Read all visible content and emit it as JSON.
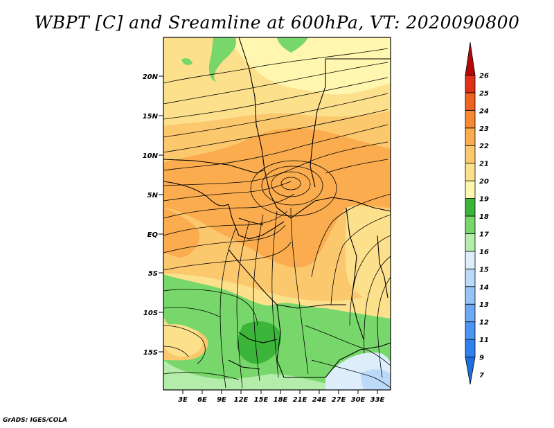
{
  "title": "WBPT [C] and Sreamline at 600hPa, VT: 2020090800",
  "credit": "GrADS: IGES/COLA",
  "map": {
    "lat_labels": [
      "20N",
      "15N",
      "10N",
      "5N",
      "EQ",
      "5S",
      "10S",
      "15S"
    ],
    "lon_labels": [
      "3E",
      "6E",
      "9E",
      "12E",
      "15E",
      "18E",
      "21E",
      "24E",
      "27E",
      "30E",
      "33E"
    ],
    "field_variable": "wet-bulb potential temperature",
    "field_unit": "C",
    "overlay": "streamlines"
  },
  "colorbar": {
    "labels": [
      "7",
      "9",
      "11",
      "12",
      "13",
      "14",
      "15",
      "16",
      "17",
      "18",
      "19",
      "20",
      "21",
      "22",
      "23",
      "24",
      "25",
      "26"
    ],
    "colors": [
      "#1e6ee0",
      "#2f82ec",
      "#4a96f2",
      "#6eaaf4",
      "#96c4f6",
      "#bcdaf8",
      "#ddeefa",
      "#b4ecaa",
      "#78d76a",
      "#3cb43a",
      "#fff6b0",
      "#fde08c",
      "#fcc86e",
      "#fbac4e",
      "#f58a32",
      "#ee6222",
      "#e03018",
      "#b30808"
    ]
  }
}
